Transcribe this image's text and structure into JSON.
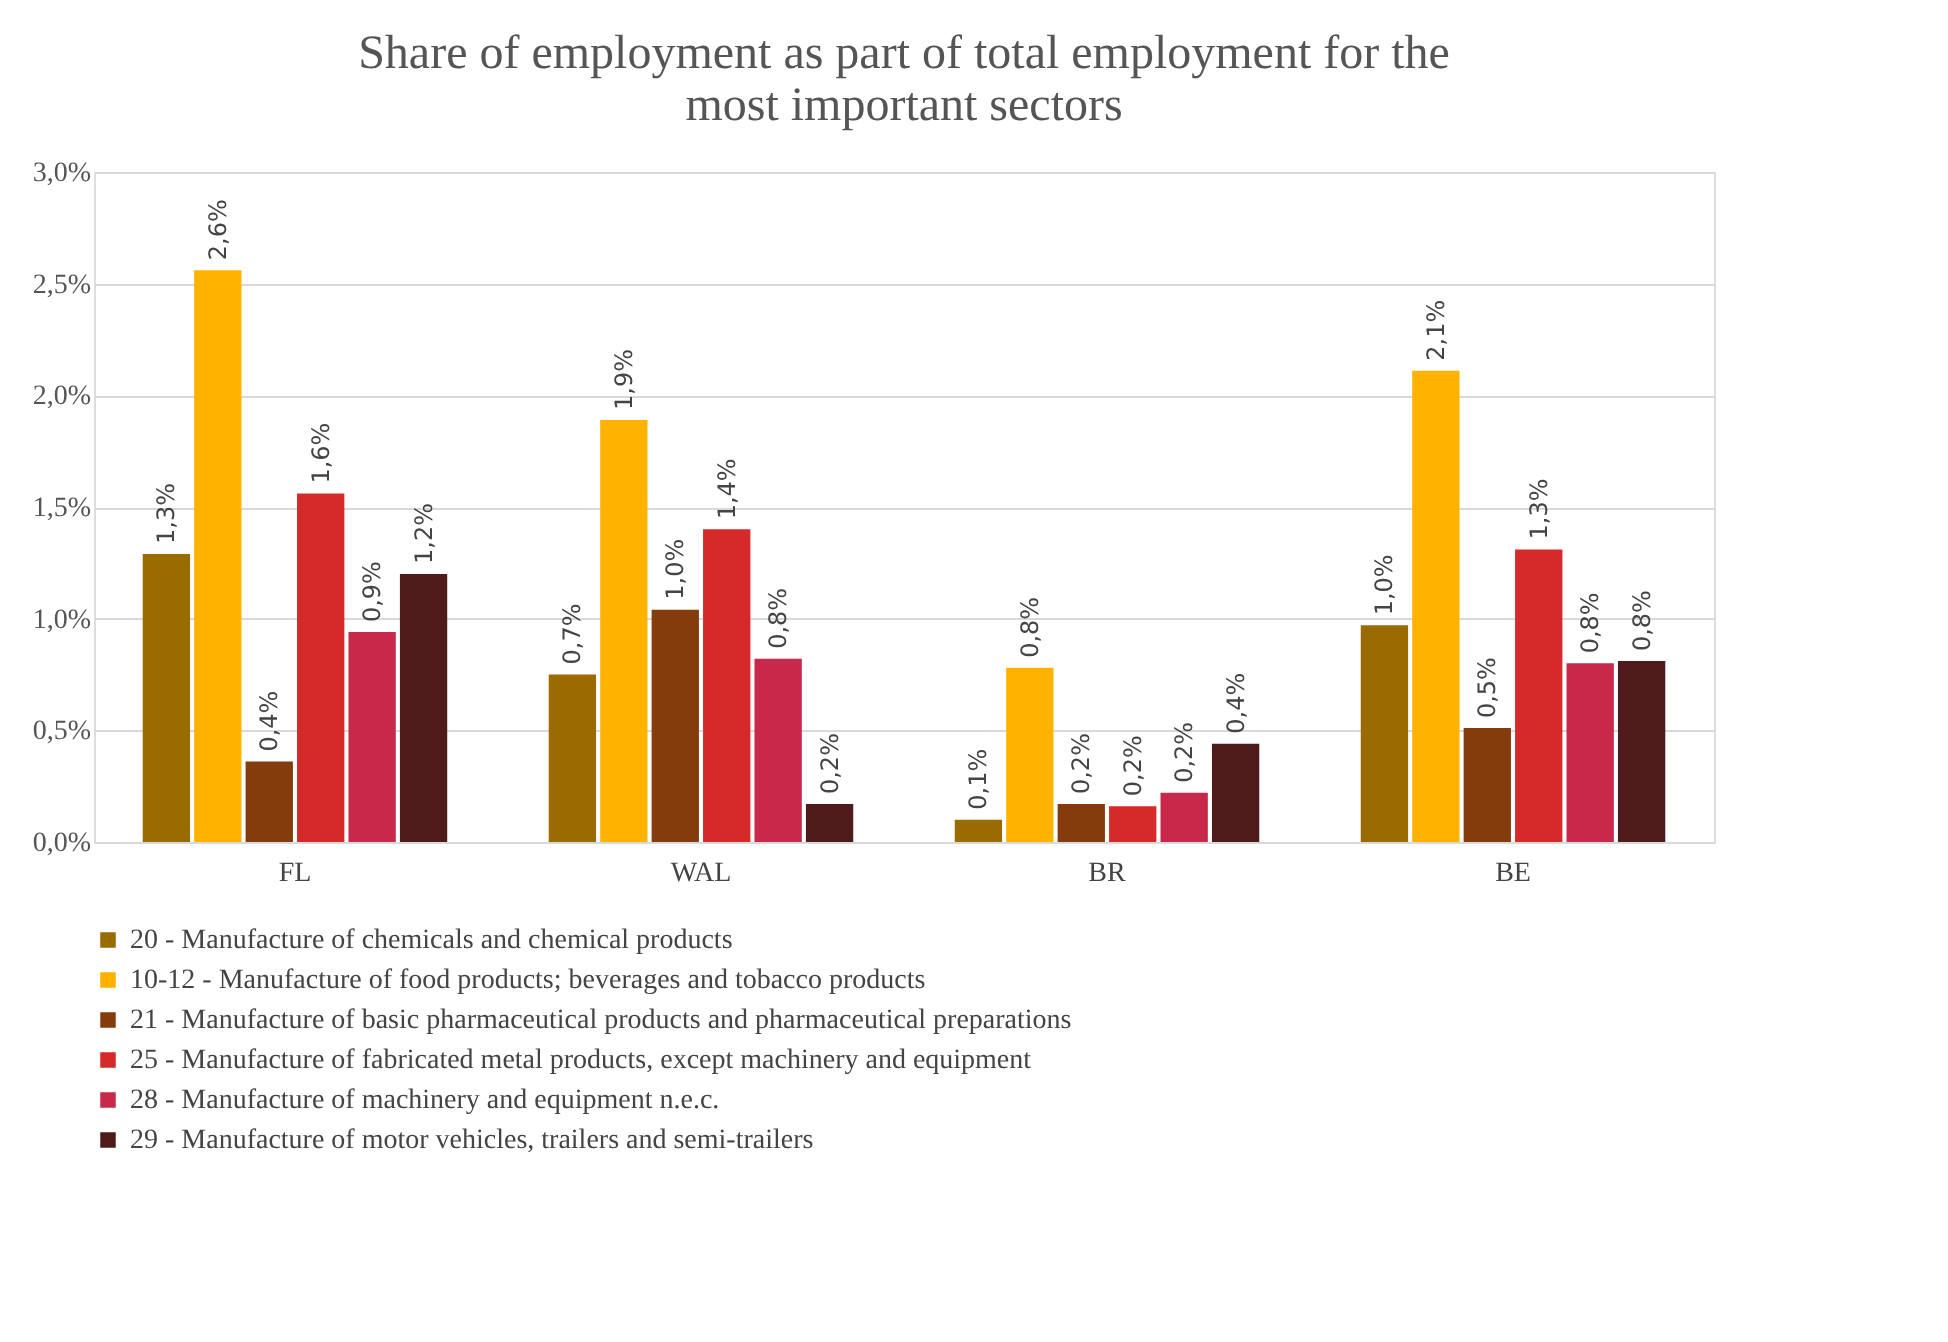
{
  "chart_data": {
    "type": "bar",
    "title": "Share of employment as part of total employment for the most important sectors",
    "categories": [
      "FL",
      "WAL",
      "BR",
      "BE"
    ],
    "series": [
      {
        "name": "20 - Manufacture of chemicals and chemical products",
        "color": "#9a6b00",
        "values": [
          1.29,
          0.75,
          0.1,
          0.97
        ],
        "value_labels": [
          "1,3%",
          "0,7%",
          "0,1%",
          "1,0%"
        ]
      },
      {
        "name": "10-12 - Manufacture of food products; beverages and tobacco products",
        "color": "#ffb300",
        "values": [
          2.56,
          1.89,
          0.78,
          2.11
        ],
        "value_labels": [
          "2,6%",
          "1,9%",
          "0,8%",
          "2,1%"
        ]
      },
      {
        "name": "21 - Manufacture of basic pharmaceutical products and pharmaceutical preparations",
        "color": "#843c0c",
        "values": [
          0.36,
          1.04,
          0.17,
          0.51
        ],
        "value_labels": [
          "0,4%",
          "1,0%",
          "0,2%",
          "0,5%"
        ]
      },
      {
        "name": "25 - Manufacture of fabricated metal products, except machinery and equipment",
        "color": "#d62a2a",
        "values": [
          1.56,
          1.4,
          0.16,
          1.31
        ],
        "value_labels": [
          "1,6%",
          "1,4%",
          "0,2%",
          "1,3%"
        ]
      },
      {
        "name": "28 - Manufacture of machinery and equipment n.e.c.",
        "color": "#c8284a",
        "values": [
          0.94,
          0.82,
          0.22,
          0.8
        ],
        "value_labels": [
          "0,9%",
          "0,8%",
          "0,2%",
          "0,8%"
        ]
      },
      {
        "name": "29 - Manufacture of motor vehicles, trailers and semi-trailers",
        "color": "#4e1a1a",
        "values": [
          1.2,
          0.17,
          0.44,
          0.81
        ],
        "value_labels": [
          "1,2%",
          "0,2%",
          "0,4%",
          "0,8%"
        ]
      }
    ],
    "ylim": [
      0,
      3.0
    ],
    "yticks": [
      {
        "value": 0,
        "label": "0,0%"
      },
      {
        "value": 0.5,
        "label": "0,5%"
      },
      {
        "value": 1.0,
        "label": "1,0%"
      },
      {
        "value": 1.5,
        "label": "1,5%"
      },
      {
        "value": 2.0,
        "label": "2,0%"
      },
      {
        "value": 2.5,
        "label": "2,5%"
      },
      {
        "value": 3.0,
        "label": "3,0%"
      }
    ],
    "grid": "y",
    "legend": "bottom"
  }
}
